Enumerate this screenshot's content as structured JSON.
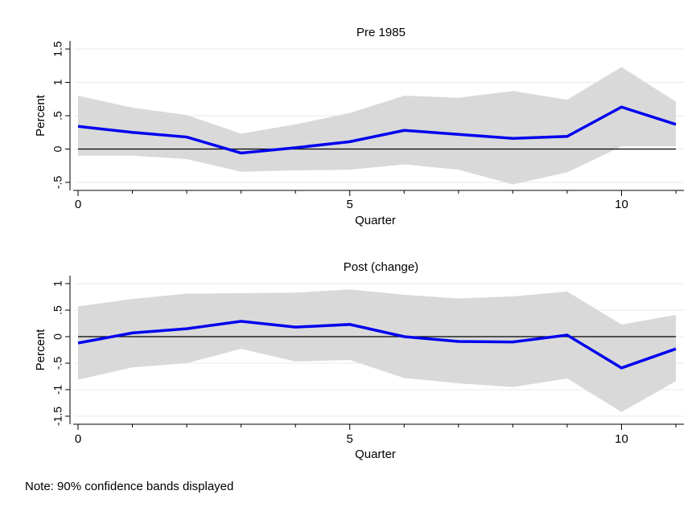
{
  "note": "Note: 90% confidence bands displayed",
  "colors": {
    "line": "#0000ee",
    "band": "#d9d9d9",
    "grid": "#e9e9e9",
    "zero": "#000000"
  },
  "chart_data": [
    {
      "type": "line",
      "title": "Pre 1985",
      "xlabel": "Quarter",
      "ylabel": "Percent",
      "xlim": [
        0,
        11
      ],
      "ylim": [
        -0.5,
        1.5
      ],
      "xticks": [
        "0",
        "5",
        "10"
      ],
      "yticks": [
        "-.5",
        "0",
        ".5",
        "1",
        "1.5"
      ],
      "grid": true,
      "zero_line": true,
      "x": [
        0,
        1,
        2,
        3,
        4,
        5,
        6,
        7,
        8,
        9,
        10,
        11
      ],
      "series": [
        {
          "values": [
            0.34,
            0.25,
            0.18,
            -0.06,
            0.02,
            0.11,
            0.28,
            0.22,
            0.16,
            0.19,
            0.63,
            0.37
          ]
        }
      ],
      "band": {
        "upper": [
          0.8,
          0.62,
          0.51,
          0.23,
          0.37,
          0.54,
          0.8,
          0.77,
          0.87,
          0.74,
          1.23,
          0.71
        ],
        "lower": [
          -0.1,
          -0.1,
          -0.15,
          -0.34,
          -0.32,
          -0.31,
          -0.23,
          -0.31,
          -0.53,
          -0.35,
          0.04,
          0.04
        ]
      }
    },
    {
      "type": "line",
      "title": "Post (change)",
      "xlabel": "Quarter",
      "ylabel": "Percent",
      "xlim": [
        0,
        11
      ],
      "ylim": [
        -1.5,
        1
      ],
      "xticks": [
        "0",
        "5",
        "10"
      ],
      "yticks": [
        "-1.5",
        "-1",
        "-.5",
        "0",
        ".5",
        "1"
      ],
      "grid": true,
      "zero_line": true,
      "x": [
        0,
        1,
        2,
        3,
        4,
        5,
        6,
        7,
        8,
        9,
        10,
        11
      ],
      "series": [
        {
          "values": [
            -0.12,
            0.07,
            0.15,
            0.29,
            0.18,
            0.23,
            0.0,
            -0.09,
            -0.1,
            0.03,
            -0.59,
            -0.23
          ]
        }
      ],
      "band": {
        "upper": [
          0.57,
          0.71,
          0.81,
          0.82,
          0.83,
          0.89,
          0.79,
          0.72,
          0.76,
          0.85,
          0.23,
          0.41
        ],
        "lower": [
          -0.81,
          -0.58,
          -0.5,
          -0.23,
          -0.47,
          -0.44,
          -0.78,
          -0.88,
          -0.95,
          -0.79,
          -1.42,
          -0.84
        ]
      }
    }
  ]
}
